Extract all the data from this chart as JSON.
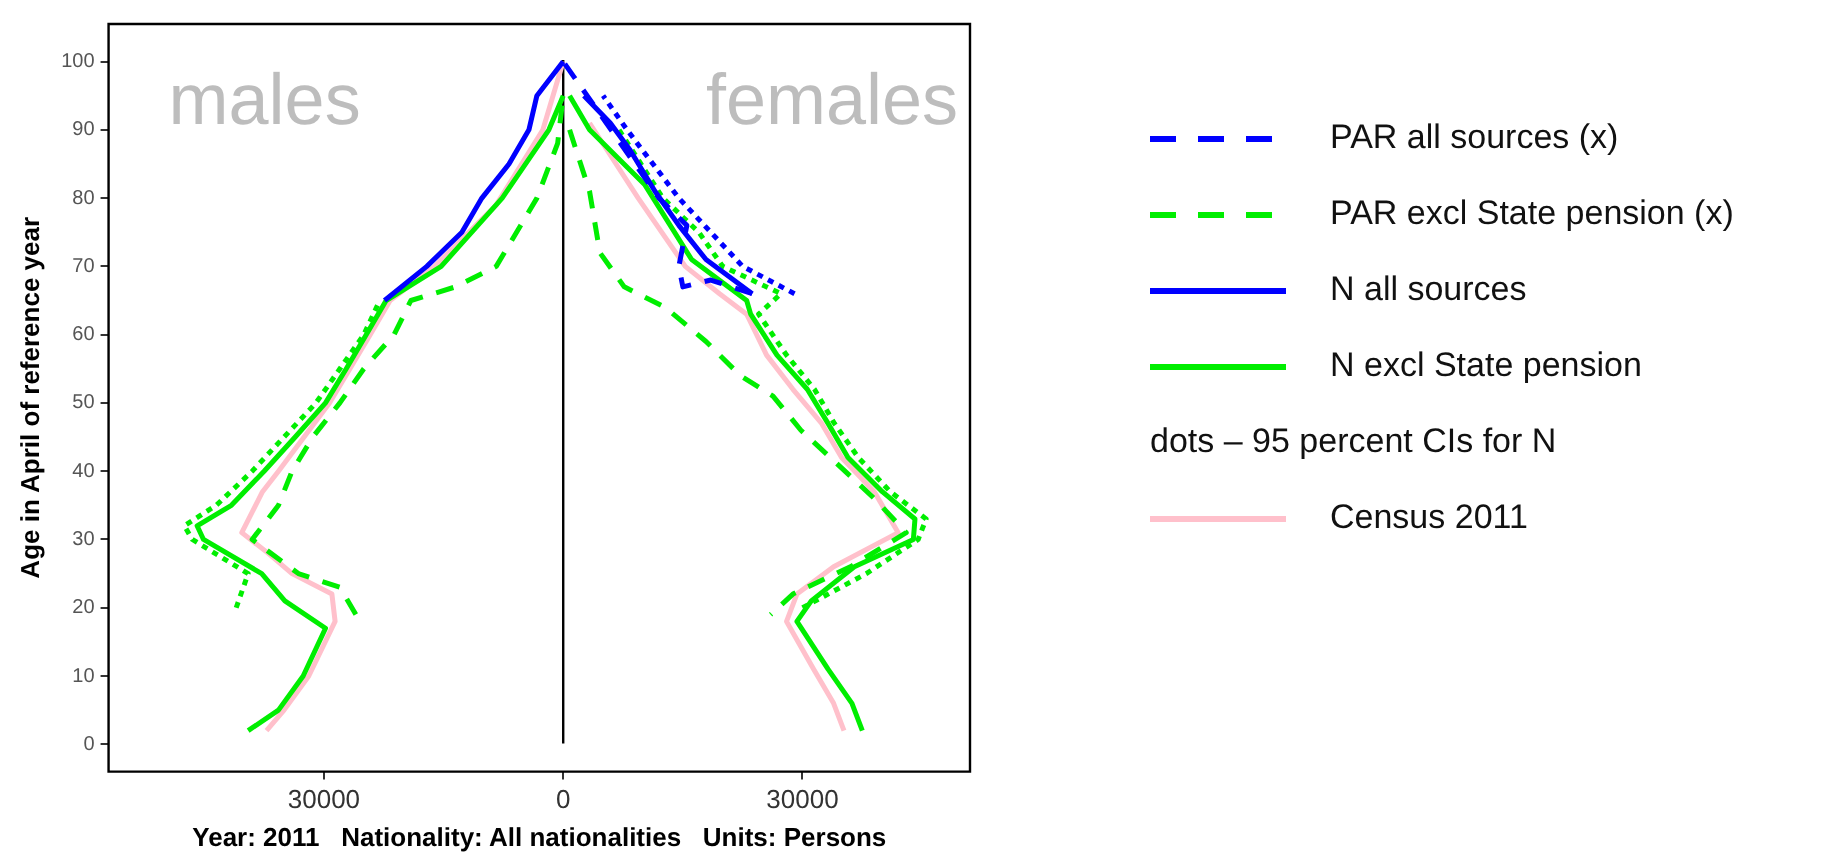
{
  "chart_data": {
    "type": "line",
    "xlabel": "Year: 2011   Nationality: All nationalities   Units: Persons",
    "ylabel": "Age in April of reference year",
    "annotations": [
      "males",
      "females",
      "dots – 95 percent CIs for N"
    ],
    "xlim": [
      -57000,
      51000
    ],
    "xticks": [
      {
        "value": -30000,
        "label": "30000"
      },
      0,
      30000
    ],
    "ylim": [
      -4,
      105.5
    ],
    "yticks": [
      0,
      10,
      20,
      30,
      40,
      50,
      60,
      70,
      80,
      90,
      100
    ],
    "grid": false,
    "legend": "right",
    "marker": "none",
    "ref_lines": [
      {
        "axis": "x",
        "value": 0,
        "label": null,
        "color": "#000000"
      }
    ],
    "series": [
      {
        "name": "PAR all sources (x)",
        "color": "#0000ff",
        "line_style": "dashed",
        "x": [
          23700,
          18500,
          15000,
          14500,
          15500,
          12000,
          9000,
          6000,
          3000,
          0
        ],
        "values": [
          66,
          68,
          67,
          70,
          76,
          80,
          85,
          90,
          95,
          100
        ]
      },
      {
        "name": "PAR excl State pension (x)",
        "color": "#00ee00",
        "line_style": "dashed",
        "x": [
          -26000,
          -28000,
          -33200,
          -39000,
          -35700,
          -34000,
          -31400,
          -28000,
          -25000,
          -21200,
          -19100,
          -13500,
          -8400,
          -3300,
          -700,
          0,
          null,
          800,
          3300,
          4600,
          7650,
          12800,
          17900,
          22200,
          26300,
          29800,
          33500,
          39000,
          43000,
          36000,
          28800,
          26000
        ],
        "values": [
          19,
          23,
          25,
          30,
          35,
          40,
          45,
          50,
          55,
          60,
          65,
          67,
          70,
          80,
          88,
          95,
          null,
          90,
          81,
          72,
          67,
          64,
          59,
          54,
          51,
          46,
          42,
          36,
          31,
          26,
          22,
          19
        ]
      },
      {
        "name": "N all sources",
        "color": "#0000ff",
        "line_style": "solid",
        "x": [
          -22400,
          -17100,
          -12700,
          -10200,
          -6800,
          -4300,
          -3300,
          0,
          null,
          2600,
          5900,
          8400,
          11500,
          14500,
          17900,
          23700
        ],
        "values": [
          65,
          70,
          75,
          80,
          85,
          90,
          95,
          100,
          null,
          95,
          91,
          87,
          81,
          76,
          71,
          66
        ]
      },
      {
        "name": "N excl State pension",
        "color": "#00ee00",
        "line_style": "solid",
        "x": [
          -39500,
          -35700,
          -32600,
          -29800,
          -34900,
          -37800,
          -45100,
          -45900,
          -41600,
          -37500,
          -33600,
          -29800,
          -27200,
          -24700,
          -22200,
          -15300,
          -7650,
          -1800,
          0,
          null,
          800,
          3300,
          10200,
          16100,
          23000,
          23500,
          26800,
          30600,
          33200,
          35700,
          40000,
          44100,
          43900,
          36500,
          31100,
          29300,
          33200,
          36200,
          37500
        ],
        "values": [
          2,
          5,
          10,
          17,
          21,
          25,
          30,
          32,
          35,
          40,
          45,
          50,
          55,
          60,
          65,
          70,
          80,
          90,
          95,
          null,
          95,
          90,
          82,
          71,
          65,
          63,
          57,
          52,
          47,
          42,
          37,
          33,
          30,
          26,
          21,
          18,
          11,
          6,
          2
        ]
      },
      {
        "color": "#00ee00",
        "line_style": "dotted",
        "x": [
          -41000,
          -39500,
          -46500,
          -47500,
          -43500,
          -39000,
          -35000,
          -31000,
          -28000,
          -25000,
          -23000,
          null,
          30000,
          38000,
          44500,
          45500,
          41000,
          37000,
          34000,
          31500,
          28000,
          24500,
          27300,
          20000,
          17000,
          12500,
          7000
        ],
        "values": [
          20,
          25,
          30,
          32,
          35,
          40,
          45,
          50,
          55,
          60,
          65,
          null,
          20,
          25,
          30,
          33,
          37,
          42,
          47,
          52,
          57,
          63,
          66,
          70,
          75,
          80,
          90
        ]
      },
      {
        "color": "#0000ff",
        "line_style": "dotted",
        "x": [
          29000,
          22500,
          18500,
          14500,
          8000,
          5000
        ],
        "values": [
          66,
          70,
          75,
          80,
          90,
          95
        ]
      },
      {
        "name": "Census 2011",
        "color": "#ffc0cb",
        "line_style": "solid",
        "x": [
          -37200,
          -35000,
          -31900,
          -28600,
          -29000,
          -34000,
          -37000,
          -40300,
          -37700,
          -35700,
          -29300,
          -24200,
          -21700,
          -16100,
          -8400,
          -2550,
          0,
          null,
          3300,
          9400,
          15300,
          19600,
          23000,
          25500,
          28800,
          32400,
          34900,
          39000,
          42000,
          33900,
          29300,
          28000,
          31400,
          33900,
          35200
        ],
        "values": [
          2,
          5,
          10,
          18,
          22,
          25,
          28,
          31,
          37,
          40,
          50,
          60,
          65,
          70,
          79,
          90,
          100,
          null,
          91,
          80,
          70,
          66,
          63,
          57,
          52,
          47,
          42,
          37,
          31,
          26,
          22,
          18,
          11,
          6,
          2
        ]
      }
    ]
  }
}
